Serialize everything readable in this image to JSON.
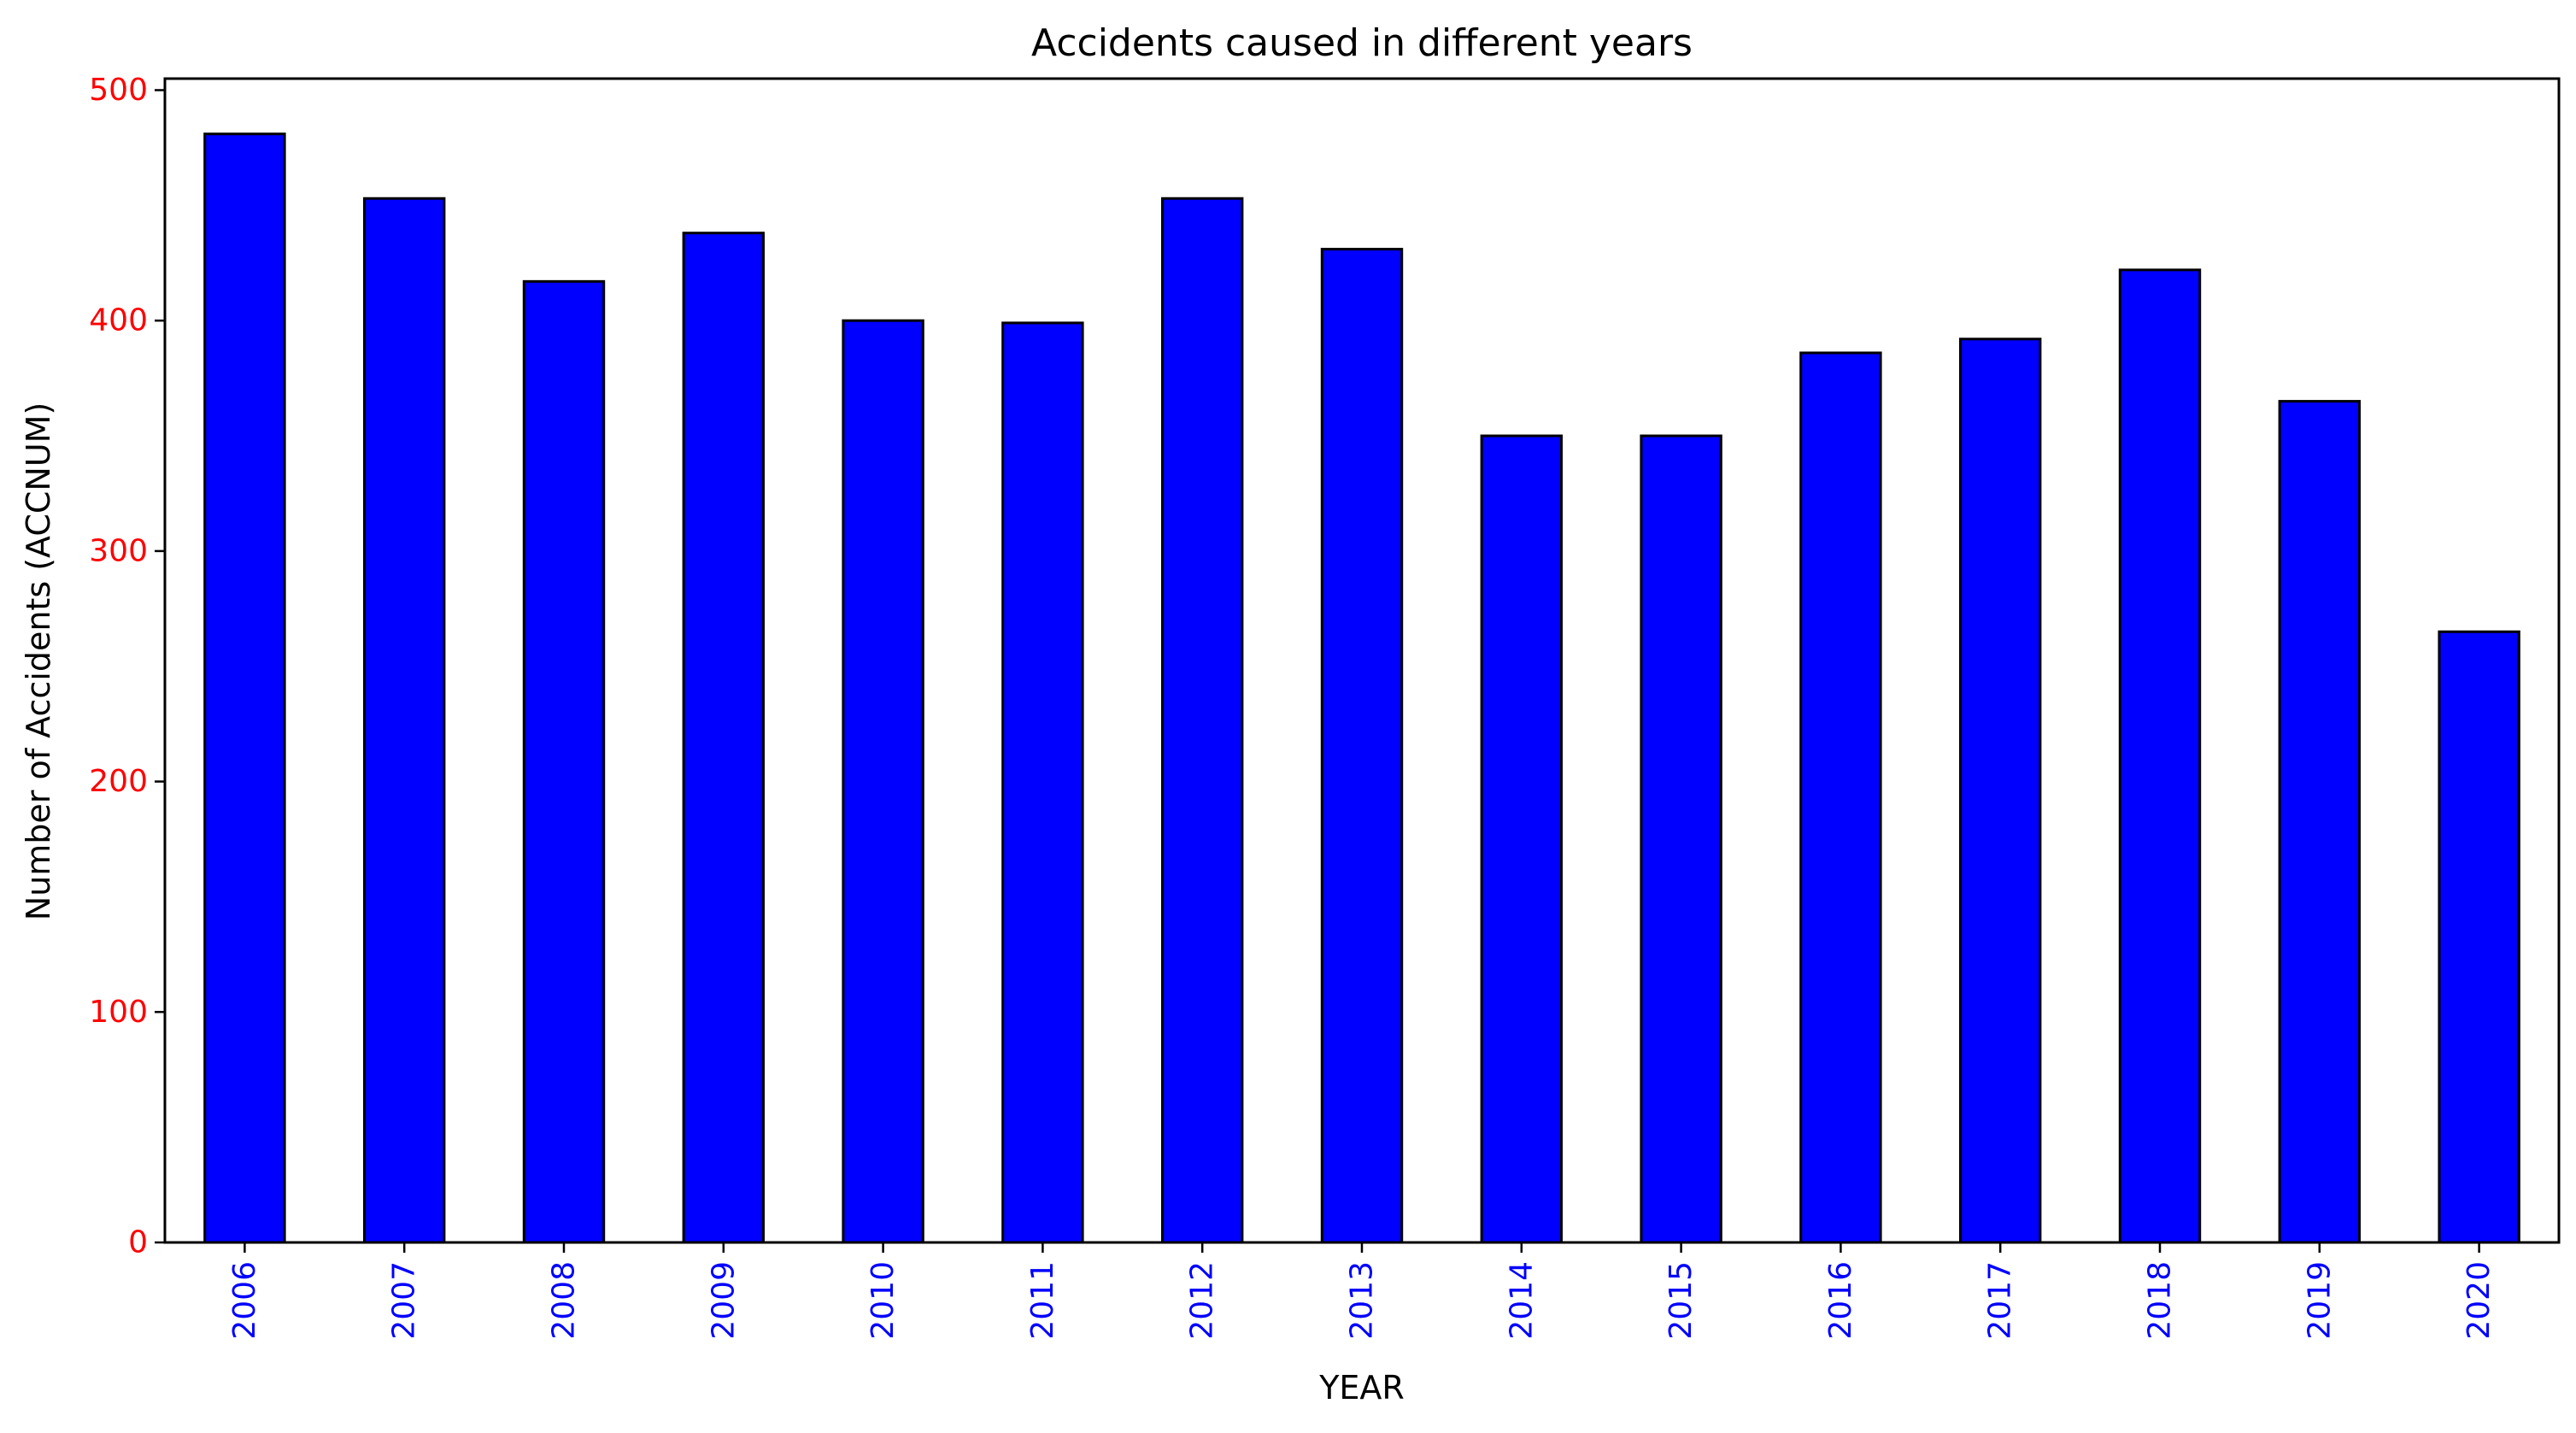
{
  "chart_data": {
    "type": "bar",
    "title": "Accidents caused in different years",
    "xlabel": "YEAR",
    "ylabel": "Number of Accidents (ACCNUM)",
    "categories": [
      "2006",
      "2007",
      "2008",
      "2009",
      "2010",
      "2011",
      "2012",
      "2013",
      "2014",
      "2015",
      "2016",
      "2017",
      "2018",
      "2019",
      "2020"
    ],
    "values": [
      481,
      453,
      417,
      438,
      400,
      399,
      453,
      431,
      350,
      350,
      386,
      392,
      422,
      365,
      265
    ],
    "ylim": [
      0,
      505
    ],
    "yticks": [
      0,
      100,
      200,
      300,
      400,
      500
    ],
    "grid": false,
    "legend": "none",
    "colors": {
      "bar_fill": "#0000ff",
      "bar_edge": "#000000",
      "ytick_label": "#ff0000",
      "xtick_label": "#0000ff"
    }
  }
}
